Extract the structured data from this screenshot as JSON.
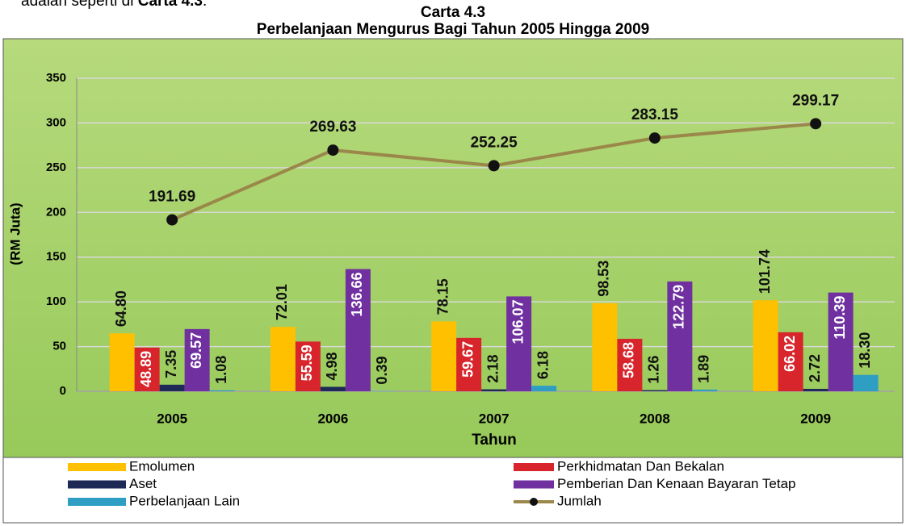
{
  "intro": {
    "text": "adalah seperti di",
    "bold": "Carta 4.3",
    "end": "."
  },
  "chart_data": {
    "type": "bar",
    "title": "Carta 4.3",
    "subtitle": "Perbelanjaan Mengurus Bagi Tahun 2005 Hingga 2009",
    "x_label": "Tahun",
    "y_label": "(RM Juta)",
    "categories": [
      "2005",
      "2006",
      "2007",
      "2008",
      "2009"
    ],
    "ylim": [
      0,
      350
    ],
    "yticks": [
      0,
      50,
      100,
      150,
      200,
      250,
      300,
      350
    ],
    "grid": true,
    "legend": "bottom",
    "series": [
      {
        "name": "Emolumen",
        "color": "#ffc000",
        "values": [
          64.8,
          72.01,
          78.15,
          98.53,
          101.74
        ],
        "value_labels": [
          "64.80",
          "72.01",
          "78.15",
          "98.53",
          "101.74"
        ]
      },
      {
        "name": "Perkhidmatan Dan Bekalan",
        "color": "#d7252b",
        "values": [
          48.89,
          55.59,
          59.67,
          58.68,
          66.02
        ],
        "value_labels": [
          "48.89",
          "55.59",
          "59.67",
          "58.68",
          "66.02"
        ]
      },
      {
        "name": "Aset",
        "color": "#1c2a55",
        "values": [
          7.35,
          4.98,
          2.18,
          1.26,
          2.72
        ],
        "value_labels": [
          "7.35",
          "4.98",
          "2.18",
          "1.26",
          "2.72"
        ]
      },
      {
        "name": "Pemberian Dan Kenaan  Bayaran Tetap",
        "color": "#7030a0",
        "values": [
          69.57,
          136.66,
          106.07,
          122.79,
          110.39
        ],
        "value_labels": [
          "69.57",
          "136.66",
          "106.07",
          "122.79",
          "110.39"
        ]
      },
      {
        "name": "Perbelanjaan Lain",
        "color": "#2e9fc2",
        "values": [
          1.08,
          0.39,
          6.18,
          1.89,
          18.3
        ],
        "value_labels": [
          "1.08",
          "0.39",
          "6.18",
          "1.89",
          "18.30"
        ]
      },
      {
        "name": "Jumlah",
        "type": "line",
        "color": "#9a8749",
        "values": [
          191.69,
          269.63,
          252.25,
          283.15,
          299.17
        ],
        "value_labels": [
          "191.69",
          "269.63",
          "252.25",
          "283.15",
          "299.17"
        ]
      }
    ]
  }
}
